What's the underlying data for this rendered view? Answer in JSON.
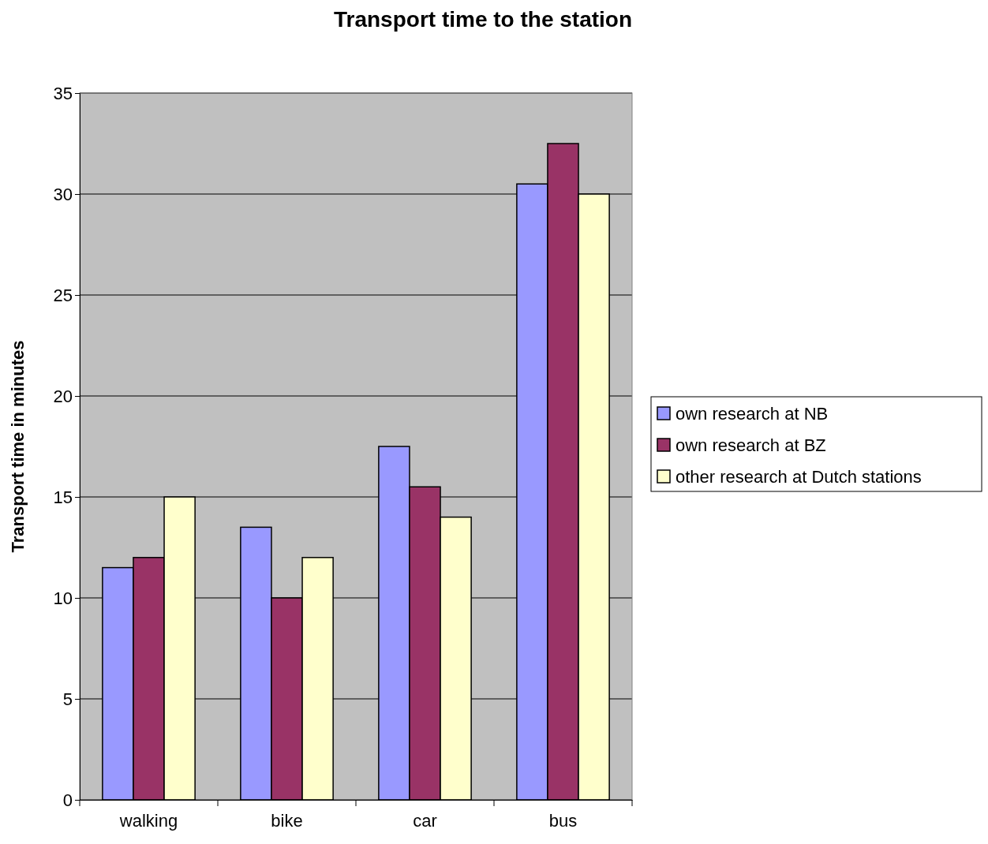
{
  "chart_data": {
    "type": "bar",
    "title": "Transport time to the station",
    "ylabel": "Transport time in minutes",
    "categories": [
      "walking",
      "bike",
      "car",
      "bus"
    ],
    "series": [
      {
        "name": "own research at NB",
        "color": "#9999ff",
        "values": [
          11.5,
          13.5,
          17.5,
          30.5
        ]
      },
      {
        "name": "own research at BZ",
        "color": "#993366",
        "values": [
          12,
          10,
          15.5,
          32.5
        ]
      },
      {
        "name": "other research at Dutch stations",
        "color": "#ffffcc",
        "values": [
          15,
          12,
          14,
          30
        ]
      }
    ],
    "ylim": [
      0,
      35
    ],
    "yticks": [
      0,
      5,
      10,
      15,
      20,
      25,
      30,
      35
    ],
    "grid": "y",
    "legend": "right"
  }
}
